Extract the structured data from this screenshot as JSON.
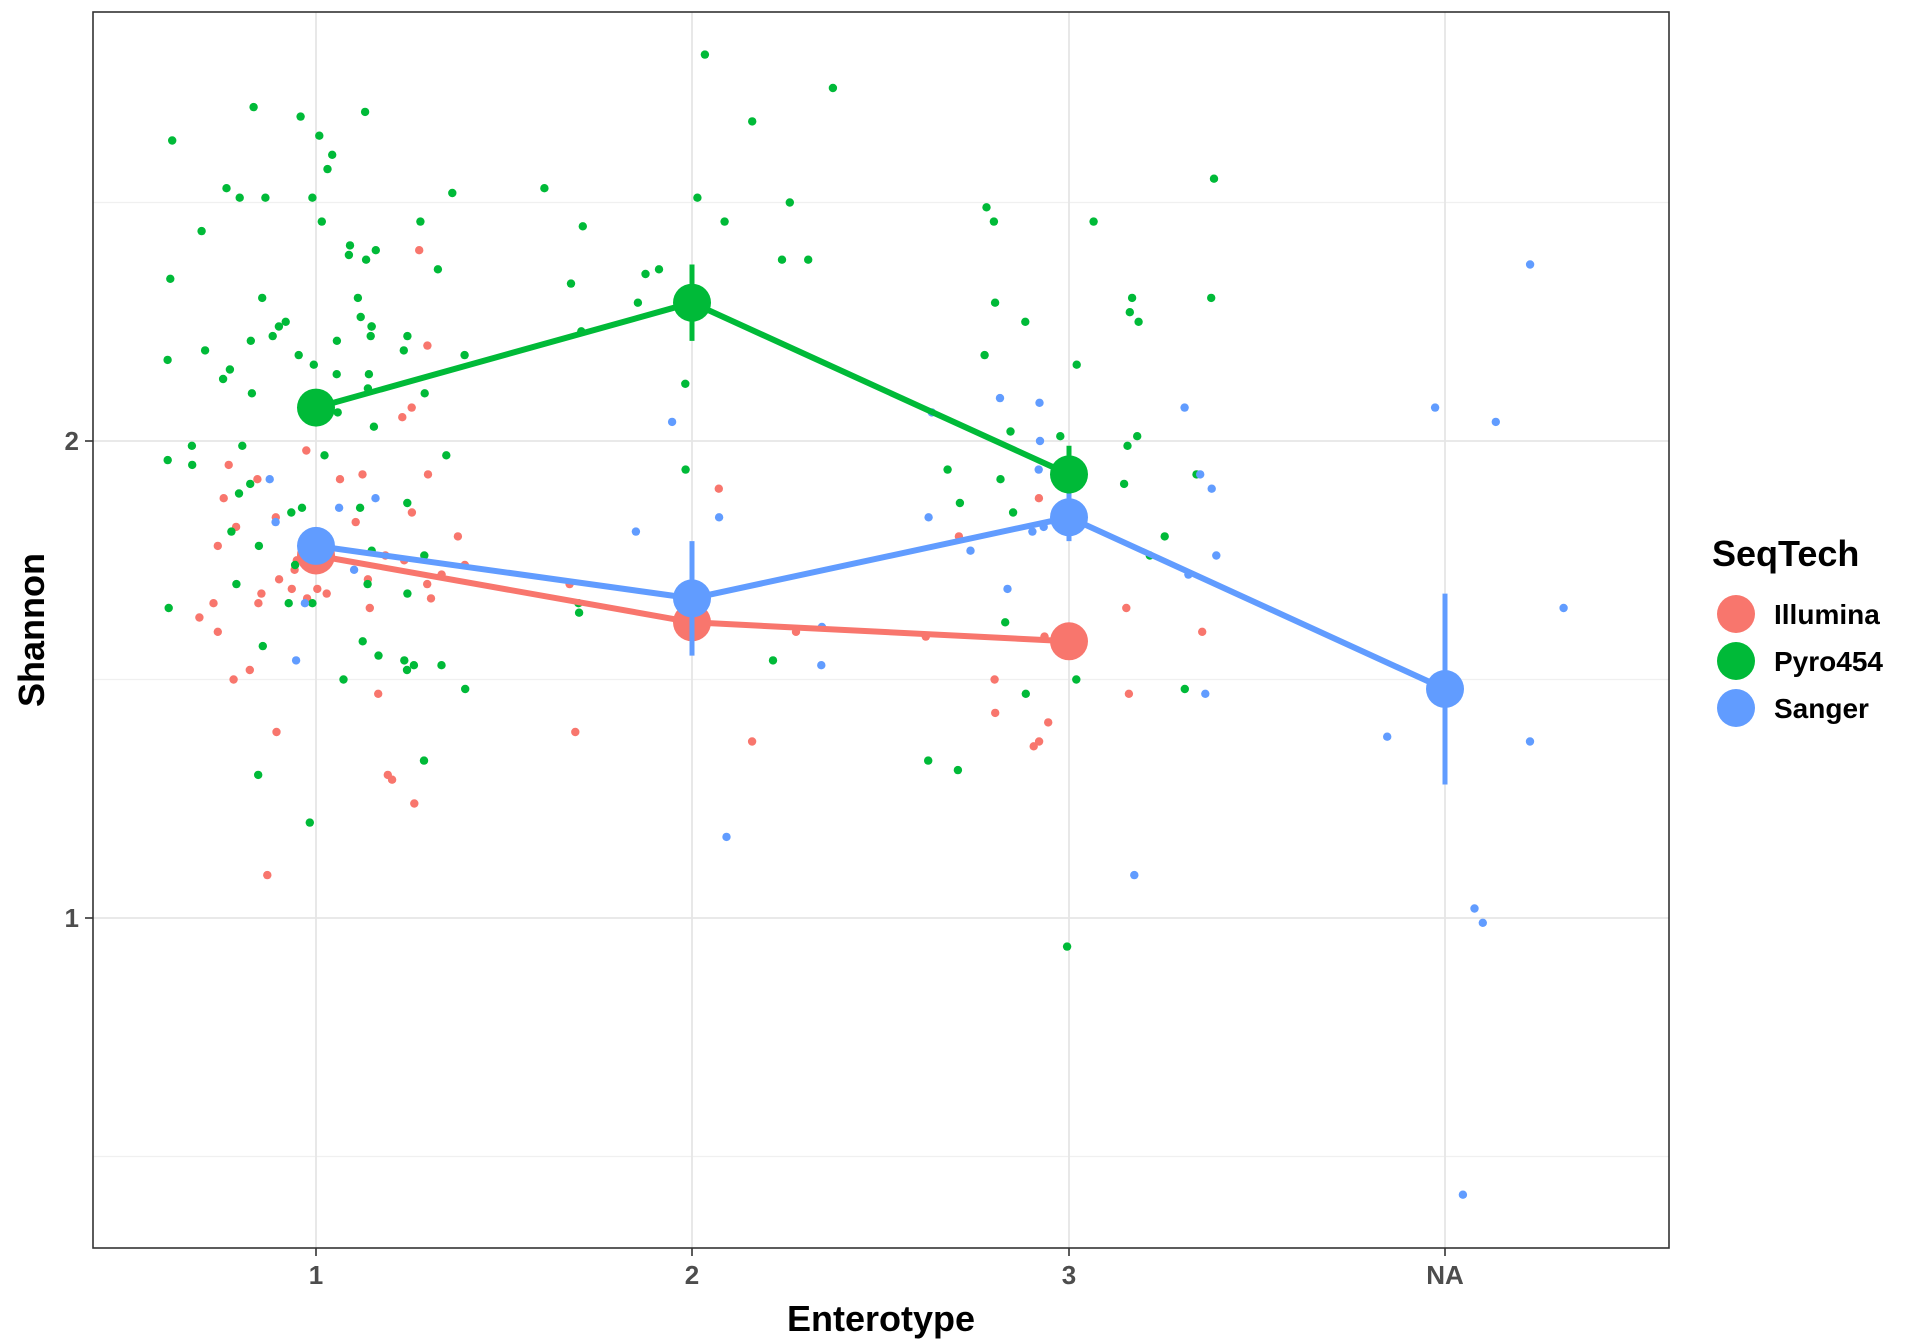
{
  "chart_data": {
    "type": "scatter",
    "xlabel": "Enterotype",
    "ylabel": "Shannon",
    "categories": [
      "1",
      "2",
      "3",
      "NA"
    ],
    "y_ticks": [
      "1",
      "2"
    ],
    "ylim": [
      0.35,
      2.75
    ],
    "grid": true,
    "legend": {
      "title": "SeqTech",
      "placement": "right"
    },
    "series": [
      {
        "name": "Illumina",
        "color": "#F8766D",
        "mean_line": [
          {
            "x": "1",
            "y": 1.76
          },
          {
            "x": "2",
            "y": 1.62
          },
          {
            "x": "3",
            "y": 1.58
          }
        ],
        "points": [
          {
            "x": "1",
            "y": 1.93
          },
          {
            "x": "1",
            "y": 1.92
          },
          {
            "x": "1",
            "y": 1.83
          },
          {
            "x": "1",
            "y": 1.74
          },
          {
            "x": "1",
            "y": 1.65
          },
          {
            "x": "1",
            "y": 1.71
          },
          {
            "x": "1",
            "y": 1.6
          },
          {
            "x": "1",
            "y": 1.67
          },
          {
            "x": "1",
            "y": 1.47
          },
          {
            "x": "1",
            "y": 1.24
          },
          {
            "x": "1",
            "y": 1.3
          },
          {
            "x": "1",
            "y": 1.09
          },
          {
            "x": "1",
            "y": 1.75
          },
          {
            "x": "1",
            "y": 1.88
          },
          {
            "x": "1",
            "y": 1.92
          },
          {
            "x": "1",
            "y": 1.82
          },
          {
            "x": "1",
            "y": 1.95
          },
          {
            "x": "1",
            "y": 2.05
          },
          {
            "x": "1",
            "y": 2.2
          },
          {
            "x": "1",
            "y": 2.4
          },
          {
            "x": "1",
            "y": 1.63
          },
          {
            "x": "1",
            "y": 1.67
          },
          {
            "x": "1",
            "y": 1.76
          },
          {
            "x": "1",
            "y": 1.84
          },
          {
            "x": "1",
            "y": 1.52
          },
          {
            "x": "1",
            "y": 1.39
          },
          {
            "x": "1",
            "y": 1.72
          },
          {
            "x": "1",
            "y": 1.7
          },
          {
            "x": "1",
            "y": 1.69
          },
          {
            "x": "1",
            "y": 1.73
          },
          {
            "x": "1",
            "y": 1.85
          },
          {
            "x": "1",
            "y": 1.78
          },
          {
            "x": "1",
            "y": 1.66
          },
          {
            "x": "1",
            "y": 1.68
          },
          {
            "x": "1",
            "y": 1.71
          },
          {
            "x": "1",
            "y": 1.69
          },
          {
            "x": "1",
            "y": 1.8
          },
          {
            "x": "1",
            "y": 1.98
          },
          {
            "x": "1",
            "y": 1.29
          },
          {
            "x": "1",
            "y": 1.5
          },
          {
            "x": "1",
            "y": 1.75
          },
          {
            "x": "1",
            "y": 1.93
          },
          {
            "x": "1",
            "y": 2.07
          },
          {
            "x": "1",
            "y": 1.66
          },
          {
            "x": "1",
            "y": 1.68
          },
          {
            "x": "2",
            "y": 1.6
          },
          {
            "x": "2",
            "y": 1.37
          },
          {
            "x": "2",
            "y": 1.39
          },
          {
            "x": "2",
            "y": 1.9
          },
          {
            "x": "2",
            "y": 1.7
          },
          {
            "x": "3",
            "y": 1.65
          },
          {
            "x": "3",
            "y": 1.88
          },
          {
            "x": "3",
            "y": 1.47
          },
          {
            "x": "3",
            "y": 1.43
          },
          {
            "x": "3",
            "y": 1.36
          },
          {
            "x": "3",
            "y": 1.37
          },
          {
            "x": "3",
            "y": 1.59
          },
          {
            "x": "3",
            "y": 1.6
          },
          {
            "x": "3",
            "y": 1.41
          },
          {
            "x": "3",
            "y": 1.59
          },
          {
            "x": "3",
            "y": 1.5
          },
          {
            "x": "3",
            "y": 1.8
          }
        ]
      },
      {
        "name": "Pyro454",
        "color": "#00BA38",
        "mean_line": [
          {
            "x": "1",
            "y": 2.07
          },
          {
            "x": "2",
            "y": 2.29
          },
          {
            "x": "3",
            "y": 1.93
          }
        ],
        "points": [
          {
            "x": "1",
            "y": 2.38
          },
          {
            "x": "1",
            "y": 2.17
          },
          {
            "x": "1",
            "y": 2.1
          },
          {
            "x": "1",
            "y": 1.91
          },
          {
            "x": "1",
            "y": 1.85
          },
          {
            "x": "1",
            "y": 1.81
          },
          {
            "x": "1",
            "y": 1.52
          },
          {
            "x": "1",
            "y": 1.2
          },
          {
            "x": "1",
            "y": 2.57
          },
          {
            "x": "1",
            "y": 2.46
          },
          {
            "x": "1",
            "y": 2.41
          },
          {
            "x": "1",
            "y": 2.4
          },
          {
            "x": "1",
            "y": 2.63
          },
          {
            "x": "1",
            "y": 2.6
          },
          {
            "x": "1",
            "y": 2.68
          },
          {
            "x": "1",
            "y": 2.64
          },
          {
            "x": "1",
            "y": 2.69
          },
          {
            "x": "1",
            "y": 2.7
          },
          {
            "x": "1",
            "y": 2.51
          },
          {
            "x": "1",
            "y": 2.52
          },
          {
            "x": "1",
            "y": 2.53
          },
          {
            "x": "1",
            "y": 2.46
          },
          {
            "x": "1",
            "y": 2.36
          },
          {
            "x": "1",
            "y": 2.39
          },
          {
            "x": "1",
            "y": 2.34
          },
          {
            "x": "1",
            "y": 2.3
          },
          {
            "x": "1",
            "y": 2.26
          },
          {
            "x": "1",
            "y": 2.25
          },
          {
            "x": "1",
            "y": 2.22
          },
          {
            "x": "1",
            "y": 2.24
          },
          {
            "x": "1",
            "y": 2.21
          },
          {
            "x": "1",
            "y": 2.19
          },
          {
            "x": "1",
            "y": 2.18
          },
          {
            "x": "1",
            "y": 2.16
          },
          {
            "x": "1",
            "y": 2.13
          },
          {
            "x": "1",
            "y": 2.14
          },
          {
            "x": "1",
            "y": 2.11
          },
          {
            "x": "1",
            "y": 2.1
          },
          {
            "x": "1",
            "y": 2.06
          },
          {
            "x": "1",
            "y": 2.03
          },
          {
            "x": "1",
            "y": 1.99
          },
          {
            "x": "1",
            "y": 1.97
          },
          {
            "x": "1",
            "y": 1.95
          },
          {
            "x": "1",
            "y": 1.89
          },
          {
            "x": "1",
            "y": 1.86
          },
          {
            "x": "1",
            "y": 1.87
          },
          {
            "x": "1",
            "y": 1.78
          },
          {
            "x": "1",
            "y": 1.76
          },
          {
            "x": "1",
            "y": 1.7
          },
          {
            "x": "1",
            "y": 1.68
          },
          {
            "x": "1",
            "y": 1.66
          },
          {
            "x": "1",
            "y": 1.74
          },
          {
            "x": "1",
            "y": 1.65
          },
          {
            "x": "1",
            "y": 1.57
          },
          {
            "x": "1",
            "y": 1.55
          },
          {
            "x": "1",
            "y": 1.53
          },
          {
            "x": "1",
            "y": 1.54
          },
          {
            "x": "1",
            "y": 1.48
          },
          {
            "x": "1",
            "y": 1.5
          },
          {
            "x": "1",
            "y": 1.33
          },
          {
            "x": "1",
            "y": 1.3
          },
          {
            "x": "1",
            "y": 1.96
          },
          {
            "x": "1",
            "y": 1.99
          },
          {
            "x": "1",
            "y": 1.97
          },
          {
            "x": "1",
            "y": 1.86
          },
          {
            "x": "1",
            "y": 1.77
          },
          {
            "x": "1",
            "y": 1.7
          },
          {
            "x": "1",
            "y": 1.66
          },
          {
            "x": "1",
            "y": 1.58
          },
          {
            "x": "1",
            "y": 1.53
          },
          {
            "x": "1",
            "y": 2.22
          },
          {
            "x": "1",
            "y": 2.19
          },
          {
            "x": "1",
            "y": 2.21
          },
          {
            "x": "1",
            "y": 2.15
          },
          {
            "x": "1",
            "y": 2.14
          },
          {
            "x": "1",
            "y": 2.18
          },
          {
            "x": "1",
            "y": 2.3
          },
          {
            "x": "1",
            "y": 2.24
          },
          {
            "x": "1",
            "y": 2.22
          },
          {
            "x": "1",
            "y": 2.24
          },
          {
            "x": "1",
            "y": 2.51
          },
          {
            "x": "1",
            "y": 2.51
          },
          {
            "x": "1",
            "y": 2.44
          },
          {
            "x": "2",
            "y": 2.81
          },
          {
            "x": "2",
            "y": 2.74
          },
          {
            "x": "2",
            "y": 2.67
          },
          {
            "x": "2",
            "y": 2.51
          },
          {
            "x": "2",
            "y": 2.5
          },
          {
            "x": "2",
            "y": 2.38
          },
          {
            "x": "2",
            "y": 2.29
          },
          {
            "x": "2",
            "y": 2.12
          },
          {
            "x": "2",
            "y": 1.94
          },
          {
            "x": "2",
            "y": 2.45
          },
          {
            "x": "2",
            "y": 2.38
          },
          {
            "x": "2",
            "y": 2.35
          },
          {
            "x": "2",
            "y": 2.53
          },
          {
            "x": "2",
            "y": 2.46
          },
          {
            "x": "2",
            "y": 2.36
          },
          {
            "x": "2",
            "y": 2.33
          },
          {
            "x": "2",
            "y": 2.23
          },
          {
            "x": "2",
            "y": 1.66
          },
          {
            "x": "2",
            "y": 1.64
          },
          {
            "x": "2",
            "y": 1.54
          },
          {
            "x": "3",
            "y": 2.3
          },
          {
            "x": "3",
            "y": 2.27
          },
          {
            "x": "3",
            "y": 2.25
          },
          {
            "x": "3",
            "y": 2.18
          },
          {
            "x": "3",
            "y": 2.01
          },
          {
            "x": "3",
            "y": 1.93
          },
          {
            "x": "3",
            "y": 1.85
          },
          {
            "x": "3",
            "y": 1.94
          },
          {
            "x": "3",
            "y": 1.48
          },
          {
            "x": "3",
            "y": 1.47
          },
          {
            "x": "3",
            "y": 2.55
          },
          {
            "x": "3",
            "y": 2.49
          },
          {
            "x": "3",
            "y": 2.46
          },
          {
            "x": "3",
            "y": 2.46
          },
          {
            "x": "3",
            "y": 2.3
          },
          {
            "x": "3",
            "y": 2.29
          },
          {
            "x": "3",
            "y": 2.25
          },
          {
            "x": "3",
            "y": 2.02
          },
          {
            "x": "3",
            "y": 1.8
          },
          {
            "x": "3",
            "y": 1.62
          },
          {
            "x": "3",
            "y": 1.5
          },
          {
            "x": "3",
            "y": 2.01
          },
          {
            "x": "3",
            "y": 2.16
          },
          {
            "x": "3",
            "y": 1.99
          },
          {
            "x": "3",
            "y": 1.91
          },
          {
            "x": "3",
            "y": 1.92
          },
          {
            "x": "3",
            "y": 1.87
          },
          {
            "x": "3",
            "y": 1.76
          },
          {
            "x": "3",
            "y": 1.33
          },
          {
            "x": "3",
            "y": 1.31
          },
          {
            "x": "3",
            "y": 0.94
          }
        ]
      },
      {
        "name": "Sanger",
        "color": "#619CFF",
        "mean_line": [
          {
            "x": "1",
            "y": 1.78
          },
          {
            "x": "2",
            "y": 1.67
          },
          {
            "x": "3",
            "y": 1.84
          },
          {
            "x": "NA",
            "y": 1.48
          }
        ],
        "points": [
          {
            "x": "1",
            "y": 1.66
          },
          {
            "x": "1",
            "y": 1.83
          },
          {
            "x": "1",
            "y": 1.88
          },
          {
            "x": "1",
            "y": 1.73
          },
          {
            "x": "1",
            "y": 1.86
          },
          {
            "x": "1",
            "y": 1.92
          },
          {
            "x": "1",
            "y": 1.54
          },
          {
            "x": "2",
            "y": 2.04
          },
          {
            "x": "2",
            "y": 1.84
          },
          {
            "x": "2",
            "y": 1.81
          },
          {
            "x": "2",
            "y": 1.61
          },
          {
            "x": "2",
            "y": 1.53
          },
          {
            "x": "2",
            "y": 1.17
          },
          {
            "x": "3",
            "y": 2.08
          },
          {
            "x": "3",
            "y": 2.07
          },
          {
            "x": "3",
            "y": 2.09
          },
          {
            "x": "3",
            "y": 2.06
          },
          {
            "x": "3",
            "y": 2.0
          },
          {
            "x": "3",
            "y": 1.94
          },
          {
            "x": "3",
            "y": 1.93
          },
          {
            "x": "3",
            "y": 1.9
          },
          {
            "x": "3",
            "y": 1.84
          },
          {
            "x": "3",
            "y": 1.82
          },
          {
            "x": "3",
            "y": 1.81
          },
          {
            "x": "3",
            "y": 1.77
          },
          {
            "x": "3",
            "y": 1.72
          },
          {
            "x": "3",
            "y": 1.69
          },
          {
            "x": "3",
            "y": 1.47
          },
          {
            "x": "3",
            "y": 1.09
          },
          {
            "x": "3",
            "y": 1.76
          },
          {
            "x": "NA",
            "y": 2.37
          },
          {
            "x": "NA",
            "y": 2.07
          },
          {
            "x": "NA",
            "y": 2.04
          },
          {
            "x": "NA",
            "y": 1.65
          },
          {
            "x": "NA",
            "y": 1.38
          },
          {
            "x": "NA",
            "y": 1.37
          },
          {
            "x": "NA",
            "y": 1.02
          },
          {
            "x": "NA",
            "y": 0.99
          },
          {
            "x": "NA",
            "y": 0.42
          }
        ]
      }
    ]
  }
}
